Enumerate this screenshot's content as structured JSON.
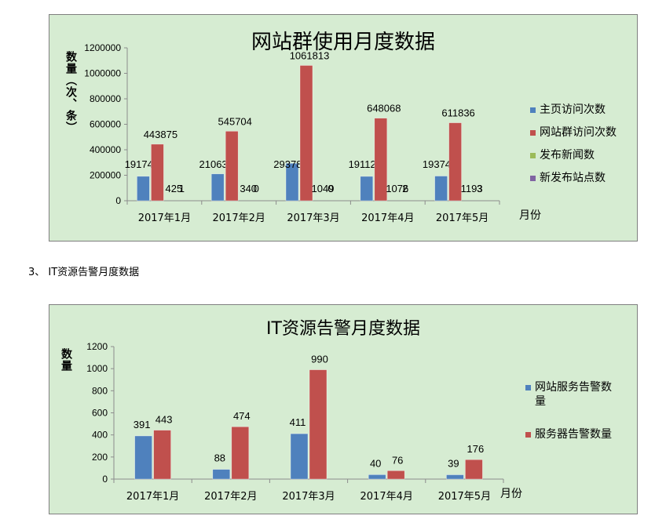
{
  "section_heading": "3、 IT资源告警月度数据",
  "chart_data": [
    {
      "type": "bar",
      "title": "网站群使用月度数据",
      "ylabel": "数量（次、条）",
      "xlabel": "月份",
      "ylim": [
        0,
        1200000
      ],
      "yticks": [
        "0",
        "200000",
        "400000",
        "600000",
        "800000",
        "1000000",
        "1200000"
      ],
      "categories": [
        "2017年1月",
        "2017年2月",
        "2017年3月",
        "2017年4月",
        "2017年5月"
      ],
      "series": [
        {
          "name": "主页访问次数",
          "color": "#4f81bd",
          "values": [
            191745,
            210631,
            293784,
            191125,
            193741
          ]
        },
        {
          "name": "网站群访问次数",
          "color": "#c0504d",
          "values": [
            443875,
            545704,
            1061813,
            648068,
            611836
          ]
        },
        {
          "name": "发布新闻数",
          "color": "#9bbb59",
          "values": [
            425,
            340,
            1049,
            1076,
            1193
          ]
        },
        {
          "name": "新发布站点数",
          "color": "#8064a2",
          "values": [
            1,
            0,
            0,
            2,
            3
          ]
        }
      ],
      "grid": false,
      "legend": "right"
    },
    {
      "type": "bar",
      "title": "IT资源告警月度数据",
      "ylabel": "数量",
      "xlabel": "月份",
      "ylim": [
        0,
        1200
      ],
      "yticks": [
        "0",
        "200",
        "400",
        "600",
        "800",
        "1000",
        "1200"
      ],
      "categories": [
        "2017年1月",
        "2017年2月",
        "2017年3月",
        "2017年4月",
        "2017年5月"
      ],
      "series": [
        {
          "name": "网站服务告警数量",
          "color": "#4f81bd",
          "values": [
            391,
            88,
            411,
            40,
            39
          ]
        },
        {
          "name": "服务器告警数量",
          "color": "#c0504d",
          "values": [
            443,
            474,
            990,
            76,
            176
          ]
        }
      ],
      "grid": false,
      "legend": "right"
    }
  ]
}
